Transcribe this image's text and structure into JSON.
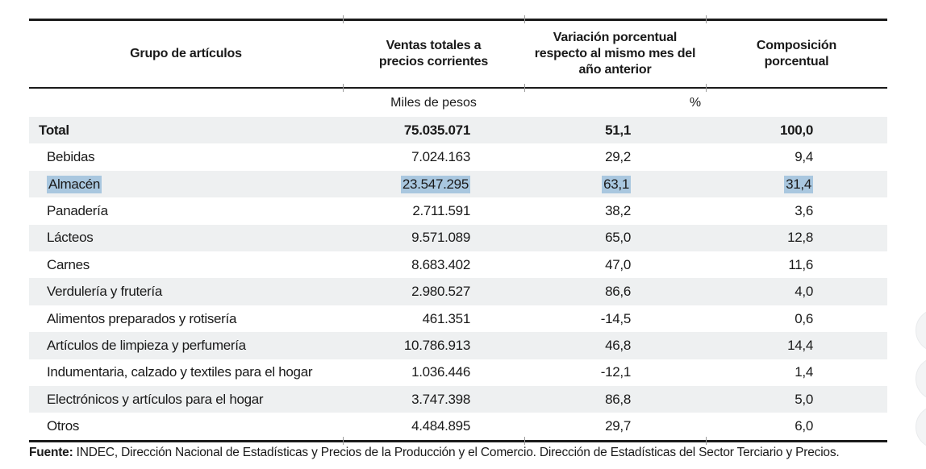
{
  "colors": {
    "rule": "#1a1a1a",
    "stripe": "#eef0f1",
    "selection_highlight": "#a9c7df",
    "text": "#1a1a1a"
  },
  "header": {
    "columns": [
      "Grupo de artículos",
      "Ventas totales a precios corrientes",
      "Variación porcentual respecto al mismo mes del año anterior",
      "Composición porcentual"
    ]
  },
  "units": {
    "ventas": "Miles de pesos",
    "percent": "%"
  },
  "rows": [
    {
      "label": "Total",
      "ventas": "75.035.071",
      "variacion": "51,1",
      "composicion": "100,0"
    },
    {
      "label": "Bebidas",
      "ventas": "7.024.163",
      "variacion": "29,2",
      "composicion": "9,4"
    },
    {
      "label": "Almacén",
      "ventas": "23.547.295",
      "variacion": "63,1",
      "composicion": "31,4"
    },
    {
      "label": "Panadería",
      "ventas": "2.711.591",
      "variacion": "38,2",
      "composicion": "3,6"
    },
    {
      "label": "Lácteos",
      "ventas": "9.571.089",
      "variacion": "65,0",
      "composicion": "12,8"
    },
    {
      "label": "Carnes",
      "ventas": "8.683.402",
      "variacion": "47,0",
      "composicion": "11,6"
    },
    {
      "label": "Verdulería y frutería",
      "ventas": "2.980.527",
      "variacion": "86,6",
      "composicion": "4,0"
    },
    {
      "label": "Alimentos preparados y rotisería",
      "ventas": "461.351",
      "variacion": "-14,5",
      "composicion": "0,6"
    },
    {
      "label": "Artículos de limpieza y perfumería",
      "ventas": "10.786.913",
      "variacion": "46,8",
      "composicion": "14,4"
    },
    {
      "label": "Indumentaria, calzado y textiles para el hogar",
      "ventas": "1.036.446",
      "variacion": "-12,1",
      "composicion": "1,4"
    },
    {
      "label": "Electrónicos y artículos para el hogar",
      "ventas": "3.747.398",
      "variacion": "86,8",
      "composicion": "5,0"
    },
    {
      "label": "Otros",
      "ventas": "4.484.895",
      "variacion": "29,7",
      "composicion": "6,0"
    }
  ],
  "footer": {
    "source_label": "Fuente:",
    "source_text": " INDEC, Dirección Nacional de Estadísticas y Precios de la Producción y el Comercio. Dirección de Estadísticas del Sector Terciario y Precios."
  }
}
